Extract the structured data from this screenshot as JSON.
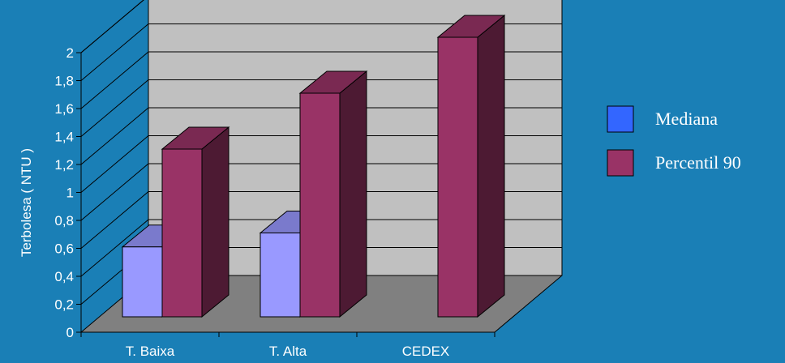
{
  "chart_data": {
    "type": "bar",
    "title": "",
    "xlabel": "",
    "ylabel": "Terbolesa ( NTU )",
    "categories": [
      "T. Baixa",
      "T. Alta",
      "CEDEX"
    ],
    "series": [
      {
        "name": "Mediana",
        "values": [
          0.5,
          0.6,
          null
        ],
        "color": "#9999ff"
      },
      {
        "name": "Percentil 90",
        "values": [
          1.2,
          1.6,
          2.0
        ],
        "color": "#993366"
      }
    ],
    "ylim": [
      0,
      2
    ],
    "yticks": [
      0,
      0.2,
      0.4,
      0.6,
      0.8,
      1,
      1.2,
      1.4,
      1.6,
      1.8,
      2
    ],
    "ytick_labels": [
      "0",
      "0,2",
      "0,4",
      "0,6",
      "0,8",
      "1",
      "1,2",
      "1,4",
      "1,6",
      "1,8",
      "2"
    ],
    "grid": true,
    "legend_position": "right",
    "colors": {
      "background": "#1a7fb6",
      "back_wall": "#c0c0c0",
      "floor": "#808080",
      "gridline": "#000000"
    }
  }
}
